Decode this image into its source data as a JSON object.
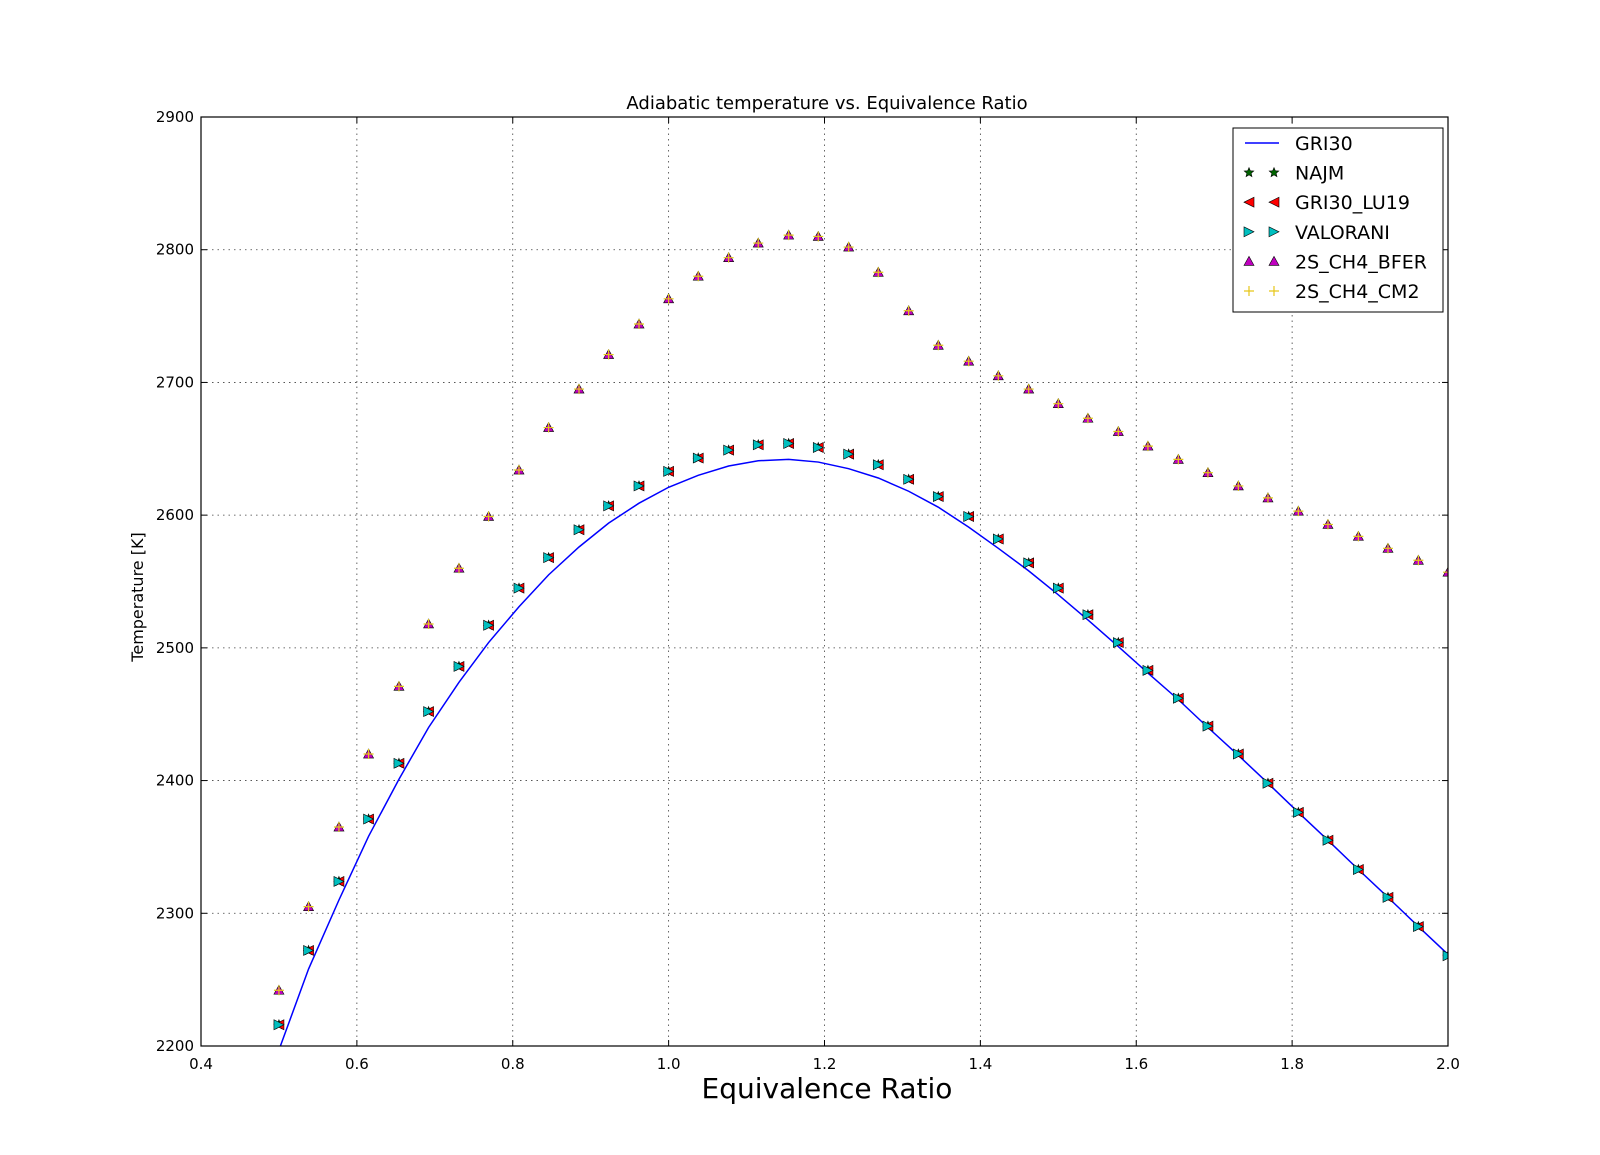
{
  "chart_data": {
    "type": "line",
    "title": "Adiabatic temperature vs. Equivalence Ratio",
    "xlabel": "Equivalence Ratio",
    "ylabel": "Temperature [K]",
    "xlim": [
      0.4,
      2.0
    ],
    "ylim": [
      2200,
      2900
    ],
    "xticks": [
      "0.4",
      "0.6",
      "0.8",
      "1.0",
      "1.2",
      "1.4",
      "1.6",
      "1.8",
      "2.0"
    ],
    "yticks": [
      "2200",
      "2300",
      "2400",
      "2500",
      "2600",
      "2700",
      "2800",
      "2900"
    ],
    "grid": true,
    "legend_position": "top-right",
    "x": [
      0.5,
      0.538,
      0.577,
      0.615,
      0.654,
      0.692,
      0.731,
      0.769,
      0.808,
      0.846,
      0.885,
      0.923,
      0.962,
      1.0,
      1.038,
      1.077,
      1.115,
      1.154,
      1.192,
      1.231,
      1.269,
      1.308,
      1.346,
      1.385,
      1.423,
      1.462,
      1.5,
      1.538,
      1.577,
      1.615,
      1.654,
      1.692,
      1.731,
      1.769,
      1.808,
      1.846,
      1.885,
      1.923,
      1.962,
      2.0
    ],
    "series": [
      {
        "name": "GRI30",
        "style": "line",
        "color": "#0000ff",
        "values": [
          2197,
          2258,
          2310,
          2358,
          2401,
          2440,
          2474,
          2504,
          2531,
          2555,
          2576,
          2594,
          2609,
          2621,
          2630,
          2637,
          2641,
          2642,
          2640,
          2635,
          2628,
          2618,
          2606,
          2591,
          2575,
          2558,
          2540,
          2521,
          2501,
          2481,
          2461,
          2440,
          2419,
          2398,
          2376,
          2355,
          2333,
          2312,
          2290,
          2269
        ]
      },
      {
        "name": "NAJM",
        "style": "marker",
        "marker": "star",
        "color": "#006400",
        "values": [
          2216,
          2272,
          2324,
          2371,
          2413,
          2452,
          2486,
          2517,
          2545,
          2568,
          2589,
          2607,
          2622,
          2633,
          2643,
          2649,
          2653,
          2654,
          2651,
          2646,
          2638,
          2627,
          2614,
          2599,
          2582,
          2564,
          2545,
          2525,
          2504,
          2483,
          2462,
          2441,
          2420,
          2398,
          2376,
          2355,
          2333,
          2312,
          2290,
          2268
        ]
      },
      {
        "name": "GRI30_LU19",
        "style": "marker",
        "marker": "triangle-left",
        "color": "#ff0000",
        "values": [
          2216,
          2272,
          2324,
          2371,
          2413,
          2452,
          2486,
          2517,
          2545,
          2568,
          2589,
          2607,
          2622,
          2633,
          2643,
          2649,
          2653,
          2654,
          2651,
          2646,
          2638,
          2627,
          2614,
          2599,
          2582,
          2564,
          2545,
          2525,
          2504,
          2483,
          2462,
          2441,
          2420,
          2398,
          2376,
          2355,
          2333,
          2312,
          2290,
          2268
        ]
      },
      {
        "name": "VALORANI",
        "style": "marker",
        "marker": "triangle-right",
        "color": "#00bfbf",
        "values": [
          2216,
          2272,
          2324,
          2371,
          2413,
          2452,
          2486,
          2517,
          2545,
          2568,
          2589,
          2607,
          2622,
          2633,
          2643,
          2649,
          2653,
          2654,
          2651,
          2646,
          2638,
          2627,
          2614,
          2599,
          2582,
          2564,
          2545,
          2525,
          2504,
          2483,
          2462,
          2441,
          2420,
          2398,
          2376,
          2355,
          2333,
          2312,
          2290,
          2268
        ]
      },
      {
        "name": "2S_CH4_BFER",
        "style": "marker",
        "marker": "triangle-up",
        "color": "#bf00bf",
        "values": [
          2242,
          2305,
          2365,
          2420,
          2471,
          2518,
          2560,
          2599,
          2634,
          2666,
          2695,
          2721,
          2744,
          2763,
          2780,
          2794,
          2805,
          2811,
          2810,
          2802,
          2783,
          2754,
          2728,
          2716,
          2705,
          2695,
          2684,
          2673,
          2663,
          2652,
          2642,
          2632,
          2622,
          2613,
          2603,
          2593,
          2584,
          2575,
          2566,
          2557
        ]
      },
      {
        "name": "2S_CH4_CM2",
        "style": "marker",
        "marker": "plus",
        "color": "#e6c619",
        "values": [
          2242,
          2305,
          2365,
          2420,
          2471,
          2518,
          2560,
          2599,
          2634,
          2666,
          2695,
          2721,
          2744,
          2763,
          2780,
          2794,
          2805,
          2811,
          2810,
          2802,
          2783,
          2754,
          2728,
          2716,
          2705,
          2695,
          2684,
          2673,
          2663,
          2652,
          2642,
          2632,
          2622,
          2613,
          2603,
          2593,
          2584,
          2575,
          2566,
          2557
        ]
      }
    ]
  }
}
